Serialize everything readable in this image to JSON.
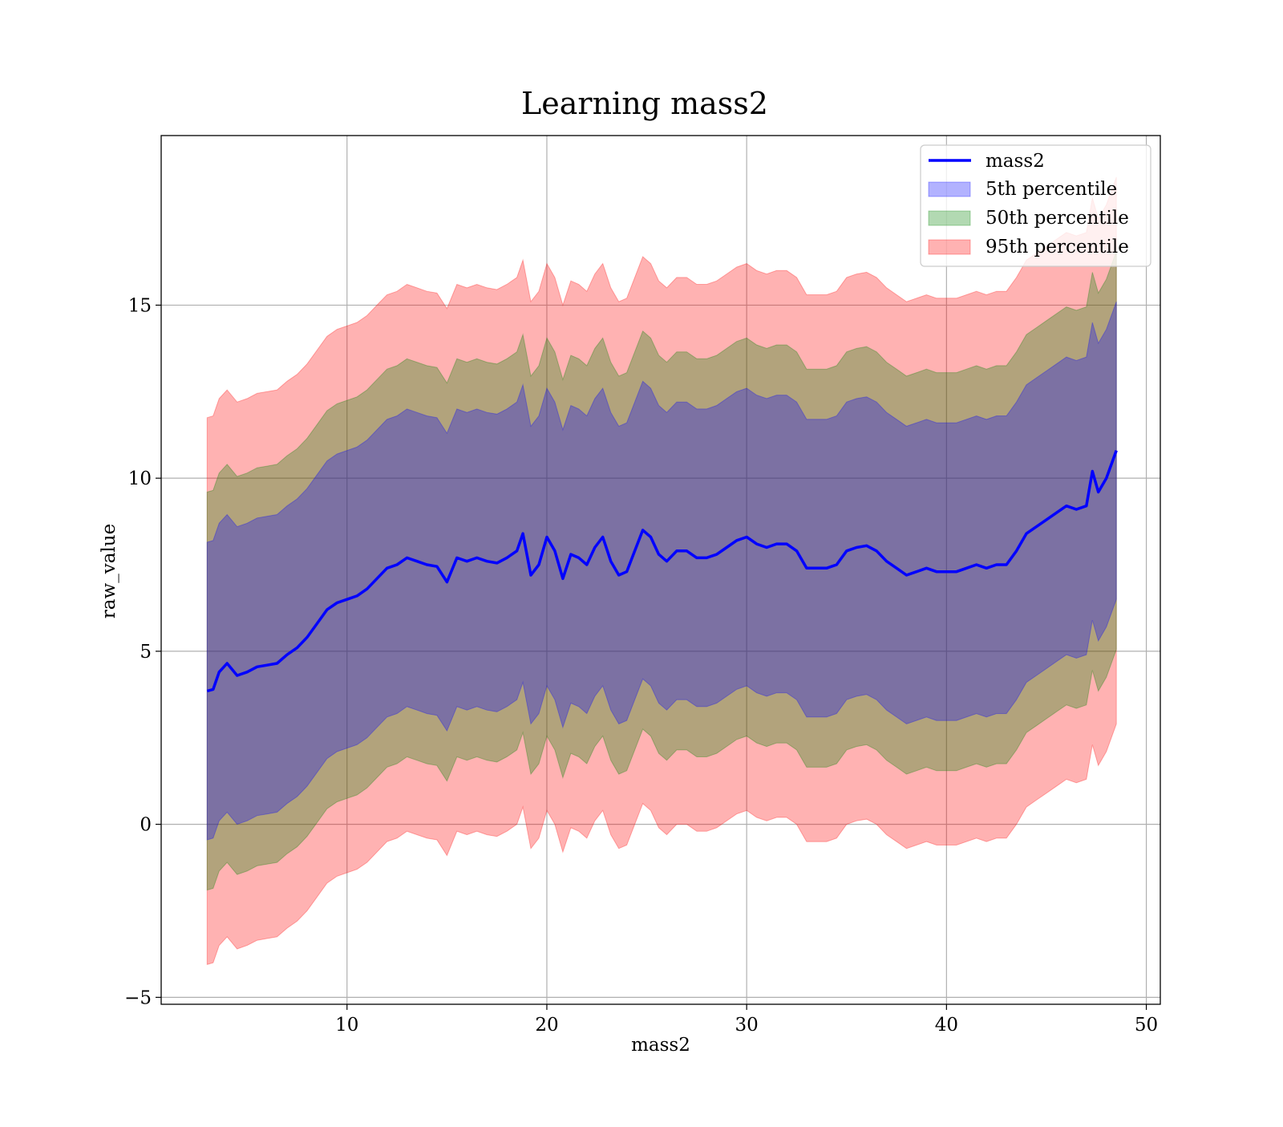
{
  "chart_data": {
    "type": "area",
    "title": "Learning mass2",
    "xlabel": "mass2",
    "ylabel": "raw_value",
    "xlim": [
      0.7,
      50.7
    ],
    "ylim": [
      -5.2,
      19.9
    ],
    "xticks": [
      10,
      20,
      30,
      40,
      50
    ],
    "yticks": [
      -5,
      0,
      5,
      10,
      15
    ],
    "xtick_labels": [
      "10",
      "20",
      "30",
      "40",
      "50"
    ],
    "ytick_labels": [
      "−5",
      "0",
      "5",
      "10",
      "15"
    ],
    "grid": true,
    "legend_position": "top-right",
    "colors": {
      "line": "#0000ff",
      "band_5": "#0000ff",
      "band_50": "#008000",
      "band_95": "#ff0000",
      "grid": "#b0b0b0",
      "axes": "#000000"
    },
    "legend": [
      {
        "label": "mass2",
        "kind": "line",
        "color": "#0000ff"
      },
      {
        "label": "5th percentile",
        "kind": "band",
        "color": "#0000ff"
      },
      {
        "label": "50th percentile",
        "kind": "band",
        "color": "#008000"
      },
      {
        "label": "95th percentile",
        "kind": "band",
        "color": "#ff0000"
      }
    ],
    "x": [
      3.0,
      3.3,
      3.6,
      4.0,
      4.5,
      5.0,
      5.5,
      6.0,
      6.5,
      7.0,
      7.5,
      8.0,
      8.5,
      9.0,
      9.5,
      10.0,
      10.5,
      11.0,
      11.5,
      12.0,
      12.5,
      13.0,
      13.5,
      14.0,
      14.5,
      15.0,
      15.5,
      16.0,
      16.5,
      17.0,
      17.5,
      18.0,
      18.5,
      18.8,
      19.2,
      19.6,
      20.0,
      20.4,
      20.8,
      21.2,
      21.6,
      22.0,
      22.4,
      22.8,
      23.2,
      23.6,
      24.0,
      24.4,
      24.8,
      25.2,
      25.6,
      26.0,
      26.5,
      27.0,
      27.5,
      28.0,
      28.5,
      29.0,
      29.5,
      30.0,
      30.5,
      31.0,
      31.5,
      32.0,
      32.5,
      33.0,
      33.5,
      34.0,
      34.5,
      35.0,
      35.5,
      36.0,
      36.5,
      37.0,
      37.5,
      38.0,
      38.5,
      39.0,
      39.5,
      40.0,
      40.5,
      41.0,
      41.5,
      42.0,
      42.5,
      43.0,
      43.5,
      44.0,
      44.5,
      45.0,
      45.5,
      46.0,
      46.5,
      47.0,
      47.3,
      47.6,
      48.0,
      48.5
    ],
    "series": [
      {
        "name": "mass2",
        "values": [
          3.85,
          3.9,
          4.4,
          4.65,
          4.3,
          4.4,
          4.55,
          4.6,
          4.65,
          4.9,
          5.1,
          5.4,
          5.8,
          6.2,
          6.4,
          6.5,
          6.6,
          6.8,
          7.1,
          7.4,
          7.5,
          7.7,
          7.6,
          7.5,
          7.45,
          7.0,
          7.7,
          7.6,
          7.7,
          7.6,
          7.55,
          7.7,
          7.9,
          8.4,
          7.2,
          7.5,
          8.3,
          7.9,
          7.1,
          7.8,
          7.7,
          7.5,
          8.0,
          8.3,
          7.6,
          7.2,
          7.3,
          7.9,
          8.5,
          8.3,
          7.8,
          7.6,
          7.9,
          7.9,
          7.7,
          7.7,
          7.8,
          8.0,
          8.2,
          8.3,
          8.1,
          8.0,
          8.1,
          8.1,
          7.9,
          7.4,
          7.4,
          7.4,
          7.5,
          7.9,
          8.0,
          8.05,
          7.9,
          7.6,
          7.4,
          7.2,
          7.3,
          7.4,
          7.3,
          7.3,
          7.3,
          7.4,
          7.5,
          7.4,
          7.5,
          7.5,
          7.9,
          8.4,
          8.6,
          8.8,
          9.0,
          9.2,
          9.1,
          9.2,
          10.2,
          9.6,
          10.0,
          10.8
        ]
      },
      {
        "name": "5th percentile",
        "values": [
          3.85,
          3.9,
          4.4,
          4.65,
          4.3,
          4.4,
          4.55,
          4.6,
          4.65,
          4.9,
          5.1,
          5.4,
          5.8,
          6.2,
          6.4,
          6.5,
          6.6,
          6.8,
          7.1,
          7.4,
          7.5,
          7.7,
          7.6,
          7.5,
          7.45,
          7.0,
          7.7,
          7.6,
          7.7,
          7.6,
          7.55,
          7.7,
          7.9,
          8.4,
          7.2,
          7.5,
          8.3,
          7.9,
          7.1,
          7.8,
          7.7,
          7.5,
          8.0,
          8.3,
          7.6,
          7.2,
          7.3,
          7.9,
          8.5,
          8.3,
          7.8,
          7.6,
          7.9,
          7.9,
          7.7,
          7.7,
          7.8,
          8.0,
          8.2,
          8.3,
          8.1,
          8.0,
          8.1,
          8.1,
          7.9,
          7.4,
          7.4,
          7.4,
          7.5,
          7.9,
          8.0,
          8.05,
          7.9,
          7.6,
          7.4,
          7.2,
          7.3,
          7.4,
          7.3,
          7.3,
          7.3,
          7.4,
          7.5,
          7.4,
          7.5,
          7.5,
          7.9,
          8.4,
          8.6,
          8.8,
          9.0,
          9.2,
          9.1,
          9.2,
          10.2,
          9.6,
          10.0,
          10.8
        ],
        "half_width": [
          4.3,
          4.3,
          4.3,
          4.3,
          4.3,
          4.3,
          4.3,
          4.3,
          4.3,
          4.3,
          4.3,
          4.3,
          4.3,
          4.3,
          4.3,
          4.3,
          4.3,
          4.3,
          4.3,
          4.3,
          4.3,
          4.3,
          4.3,
          4.3,
          4.3,
          4.3,
          4.3,
          4.3,
          4.3,
          4.3,
          4.3,
          4.3,
          4.3,
          4.3,
          4.3,
          4.3,
          4.3,
          4.3,
          4.3,
          4.3,
          4.3,
          4.3,
          4.3,
          4.3,
          4.3,
          4.3,
          4.3,
          4.3,
          4.3,
          4.3,
          4.3,
          4.3,
          4.3,
          4.3,
          4.3,
          4.3,
          4.3,
          4.3,
          4.3,
          4.3,
          4.3,
          4.3,
          4.3,
          4.3,
          4.3,
          4.3,
          4.3,
          4.3,
          4.3,
          4.3,
          4.3,
          4.3,
          4.3,
          4.3,
          4.3,
          4.3,
          4.3,
          4.3,
          4.3,
          4.3,
          4.3,
          4.3,
          4.3,
          4.3,
          4.3,
          4.3,
          4.3,
          4.3,
          4.3,
          4.3,
          4.3,
          4.3,
          4.3,
          4.3,
          4.3,
          4.3,
          4.3,
          4.3
        ]
      },
      {
        "name": "50th percentile",
        "values": [
          3.85,
          3.9,
          4.4,
          4.65,
          4.3,
          4.4,
          4.55,
          4.6,
          4.65,
          4.9,
          5.1,
          5.4,
          5.8,
          6.2,
          6.4,
          6.5,
          6.6,
          6.8,
          7.1,
          7.4,
          7.5,
          7.7,
          7.6,
          7.5,
          7.45,
          7.0,
          7.7,
          7.6,
          7.7,
          7.6,
          7.55,
          7.7,
          7.9,
          8.4,
          7.2,
          7.5,
          8.3,
          7.9,
          7.1,
          7.8,
          7.7,
          7.5,
          8.0,
          8.3,
          7.6,
          7.2,
          7.3,
          7.9,
          8.5,
          8.3,
          7.8,
          7.6,
          7.9,
          7.9,
          7.7,
          7.7,
          7.8,
          8.0,
          8.2,
          8.3,
          8.1,
          8.0,
          8.1,
          8.1,
          7.9,
          7.4,
          7.4,
          7.4,
          7.5,
          7.9,
          8.0,
          8.05,
          7.9,
          7.6,
          7.4,
          7.2,
          7.3,
          7.4,
          7.3,
          7.3,
          7.3,
          7.4,
          7.5,
          7.4,
          7.5,
          7.5,
          7.9,
          8.4,
          8.6,
          8.8,
          9.0,
          9.2,
          9.1,
          9.2,
          10.2,
          9.6,
          10.0,
          10.8
        ],
        "half_width": [
          5.75,
          5.75,
          5.75,
          5.75,
          5.75,
          5.75,
          5.75,
          5.75,
          5.75,
          5.75,
          5.75,
          5.75,
          5.75,
          5.75,
          5.75,
          5.75,
          5.75,
          5.75,
          5.75,
          5.75,
          5.75,
          5.75,
          5.75,
          5.75,
          5.75,
          5.75,
          5.75,
          5.75,
          5.75,
          5.75,
          5.75,
          5.75,
          5.75,
          5.75,
          5.75,
          5.75,
          5.75,
          5.75,
          5.75,
          5.75,
          5.75,
          5.75,
          5.75,
          5.75,
          5.75,
          5.75,
          5.75,
          5.75,
          5.75,
          5.75,
          5.75,
          5.75,
          5.75,
          5.75,
          5.75,
          5.75,
          5.75,
          5.75,
          5.75,
          5.75,
          5.75,
          5.75,
          5.75,
          5.75,
          5.75,
          5.75,
          5.75,
          5.75,
          5.75,
          5.75,
          5.75,
          5.75,
          5.75,
          5.75,
          5.75,
          5.75,
          5.75,
          5.75,
          5.75,
          5.75,
          5.75,
          5.75,
          5.75,
          5.75,
          5.75,
          5.75,
          5.75,
          5.75,
          5.75,
          5.75,
          5.75,
          5.75,
          5.75,
          5.75,
          5.75,
          5.75,
          5.75,
          5.75
        ]
      },
      {
        "name": "95th percentile",
        "values": [
          3.85,
          3.9,
          4.4,
          4.65,
          4.3,
          4.4,
          4.55,
          4.6,
          4.65,
          4.9,
          5.1,
          5.4,
          5.8,
          6.2,
          6.4,
          6.5,
          6.6,
          6.8,
          7.1,
          7.4,
          7.5,
          7.7,
          7.6,
          7.5,
          7.45,
          7.0,
          7.7,
          7.6,
          7.7,
          7.6,
          7.55,
          7.7,
          7.9,
          8.4,
          7.2,
          7.5,
          8.3,
          7.9,
          7.1,
          7.8,
          7.7,
          7.5,
          8.0,
          8.3,
          7.6,
          7.2,
          7.3,
          7.9,
          8.5,
          8.3,
          7.8,
          7.6,
          7.9,
          7.9,
          7.7,
          7.7,
          7.8,
          8.0,
          8.2,
          8.3,
          8.1,
          8.0,
          8.1,
          8.1,
          7.9,
          7.4,
          7.4,
          7.4,
          7.5,
          7.9,
          8.0,
          8.05,
          7.9,
          7.6,
          7.4,
          7.2,
          7.3,
          7.4,
          7.3,
          7.3,
          7.3,
          7.4,
          7.5,
          7.4,
          7.5,
          7.5,
          7.9,
          8.4,
          8.6,
          8.8,
          9.0,
          9.2,
          9.1,
          9.2,
          10.2,
          9.6,
          10.0,
          10.8
        ],
        "half_width": [
          7.9,
          7.9,
          7.9,
          7.9,
          7.9,
          7.9,
          7.9,
          7.9,
          7.9,
          7.9,
          7.9,
          7.9,
          7.9,
          7.9,
          7.9,
          7.9,
          7.9,
          7.9,
          7.9,
          7.9,
          7.9,
          7.9,
          7.9,
          7.9,
          7.9,
          7.9,
          7.9,
          7.9,
          7.9,
          7.9,
          7.9,
          7.9,
          7.9,
          7.9,
          7.9,
          7.9,
          7.9,
          7.9,
          7.9,
          7.9,
          7.9,
          7.9,
          7.9,
          7.9,
          7.9,
          7.9,
          7.9,
          7.9,
          7.9,
          7.9,
          7.9,
          7.9,
          7.9,
          7.9,
          7.9,
          7.9,
          7.9,
          7.9,
          7.9,
          7.9,
          7.9,
          7.9,
          7.9,
          7.9,
          7.9,
          7.9,
          7.9,
          7.9,
          7.9,
          7.9,
          7.9,
          7.9,
          7.9,
          7.9,
          7.9,
          7.9,
          7.9,
          7.9,
          7.9,
          7.9,
          7.9,
          7.9,
          7.9,
          7.9,
          7.9,
          7.9,
          7.9,
          7.9,
          7.9,
          7.9,
          7.9,
          7.9,
          7.9,
          7.9,
          7.9,
          7.9,
          7.9,
          7.9
        ]
      }
    ]
  }
}
